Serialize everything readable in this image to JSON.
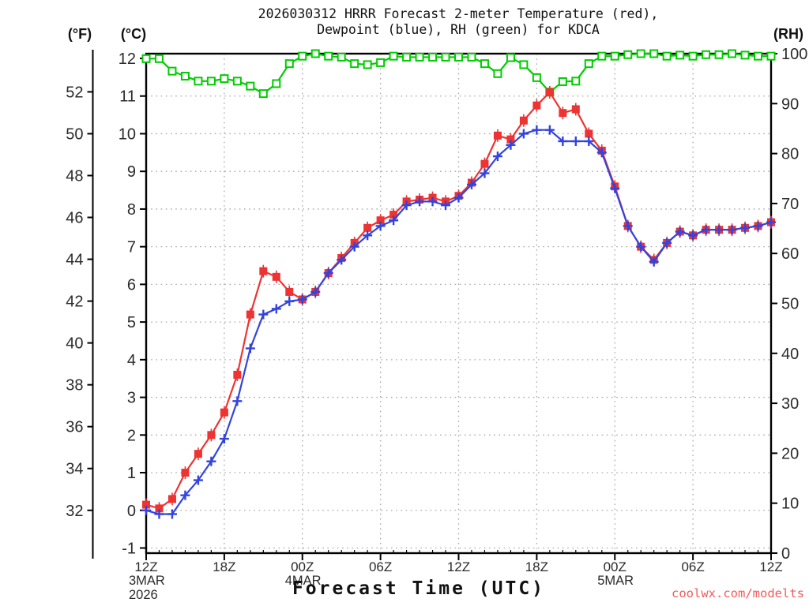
{
  "title": {
    "line1": "2026030312 HRRR Forecast 2-meter Temperature (red),",
    "line2": "Dewpoint (blue), RH (green) for KDCA"
  },
  "axis_units": {
    "fahrenheit": "(°F)",
    "celsius": "(°C)",
    "rh": "(RH)"
  },
  "x_axis_label": "Forecast Time (UTC)",
  "watermark": "coolwx.com/modelts",
  "colors": {
    "temperature": "#ee3333",
    "dewpoint": "#3344dd",
    "rh": "#00cc00",
    "grid": "#a8a8a8",
    "axis": "#000000",
    "watermark": "#f15b5b"
  },
  "chart_data": {
    "type": "line",
    "title": "2026030312 HRRR Forecast 2-meter Temperature (red), Dewpoint (blue), RH (green) for KDCA",
    "x_hours": [
      0,
      1,
      2,
      3,
      4,
      5,
      6,
      7,
      8,
      9,
      10,
      11,
      12,
      13,
      14,
      15,
      16,
      17,
      18,
      19,
      20,
      21,
      22,
      23,
      24,
      25,
      26,
      27,
      28,
      29,
      30,
      31,
      32,
      33,
      34,
      35,
      36,
      37,
      38,
      39,
      40,
      41,
      42,
      43,
      44,
      45,
      46,
      47,
      48
    ],
    "x_start": "12Z 3MAR 2026",
    "x_end": "12Z 5MAR 2026",
    "left_axis": {
      "label": "°C",
      "ylim": [
        -1,
        12
      ],
      "tick_step": 1
    },
    "left_axis_2": {
      "label": "°F",
      "ticks": [
        52,
        50,
        48,
        46,
        44,
        42,
        40,
        38,
        36,
        34,
        32
      ]
    },
    "right_axis": {
      "label": "RH %",
      "ylim": [
        0,
        100
      ],
      "tick_step": 10
    },
    "grid": true,
    "legend_position": "in-title",
    "series": [
      {
        "name": "2-meter Temperature (°C)",
        "axis": "left",
        "marker": "filled-square",
        "color_key": "temperature",
        "values": [
          0.15,
          0.05,
          0.3,
          1.0,
          1.5,
          2.0,
          2.6,
          3.6,
          5.2,
          6.35,
          6.2,
          5.8,
          5.6,
          5.8,
          6.3,
          6.7,
          7.1,
          7.5,
          7.7,
          7.85,
          8.2,
          8.25,
          8.3,
          8.2,
          8.35,
          8.7,
          9.2,
          9.95,
          9.85,
          10.35,
          10.75,
          11.1,
          10.55,
          10.65,
          10.0,
          9.55,
          8.6,
          7.55,
          7.0,
          6.65,
          7.1,
          7.4,
          7.3,
          7.45,
          7.45,
          7.45,
          7.5,
          7.55,
          7.65
        ]
      },
      {
        "name": "2-meter Dewpoint (°C)",
        "axis": "left",
        "marker": "plus",
        "color_key": "dewpoint",
        "values": [
          0.0,
          -0.1,
          -0.1,
          0.4,
          0.8,
          1.3,
          1.9,
          2.9,
          4.3,
          5.2,
          5.35,
          5.55,
          5.6,
          5.8,
          6.3,
          6.65,
          7.0,
          7.3,
          7.55,
          7.7,
          8.1,
          8.2,
          8.2,
          8.1,
          8.3,
          8.65,
          8.95,
          9.4,
          9.7,
          10.0,
          10.1,
          10.1,
          9.8,
          9.8,
          9.8,
          9.5,
          8.55,
          7.55,
          7.0,
          6.6,
          7.1,
          7.4,
          7.3,
          7.45,
          7.45,
          7.45,
          7.5,
          7.55,
          7.65
        ]
      },
      {
        "name": "Relative Humidity (%)",
        "axis": "right",
        "marker": "open-square",
        "color_key": "rh",
        "values": [
          99,
          99,
          96.5,
          95.5,
          94.5,
          94.5,
          95,
          94.5,
          93.5,
          92,
          94,
          98,
          99.5,
          100,
          99.5,
          99.3,
          98,
          97.8,
          98.2,
          99.5,
          99.3,
          99.3,
          99.3,
          99.3,
          99.3,
          99.3,
          98,
          96,
          99.2,
          97.8,
          95.2,
          92.3,
          94.4,
          94.5,
          98,
          99.5,
          99.5,
          99.8,
          100,
          100,
          99.5,
          99.7,
          99.5,
          99.8,
          99.8,
          100,
          99.7,
          99.5,
          99.5
        ]
      }
    ],
    "x_tick_labels": [
      {
        "hour": 0,
        "label": "12Z"
      },
      {
        "hour": 6,
        "label": "18Z"
      },
      {
        "hour": 12,
        "label": "00Z"
      },
      {
        "hour": 18,
        "label": "06Z"
      },
      {
        "hour": 24,
        "label": "12Z"
      },
      {
        "hour": 30,
        "label": "18Z"
      },
      {
        "hour": 36,
        "label": "00Z"
      },
      {
        "hour": 42,
        "label": "06Z"
      },
      {
        "hour": 48,
        "label": "12Z"
      }
    ],
    "x_date_labels": [
      {
        "hour": 0,
        "line1": "3MAR",
        "line2": "2026"
      },
      {
        "hour": 12,
        "line1": "4MAR",
        "line2": ""
      },
      {
        "hour": 36,
        "line1": "5MAR",
        "line2": ""
      }
    ]
  }
}
